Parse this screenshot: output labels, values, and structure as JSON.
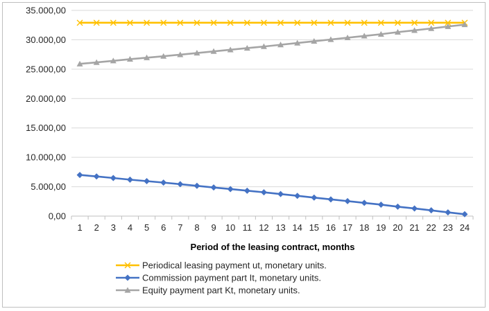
{
  "chart_data": {
    "type": "line",
    "title": "",
    "xlabel": "Period of the leasing contract, months",
    "ylabel": "",
    "x": [
      1,
      2,
      3,
      4,
      5,
      6,
      7,
      8,
      9,
      10,
      11,
      12,
      13,
      14,
      15,
      16,
      17,
      18,
      19,
      20,
      21,
      22,
      23,
      24
    ],
    "ylim": [
      0,
      35000
    ],
    "yticks": [
      0,
      5000,
      10000,
      15000,
      20000,
      25000,
      30000,
      35000
    ],
    "ytick_labels": [
      "0,00",
      "5.000,00",
      "10.000,00",
      "15.000,00",
      "20.000,00",
      "25.000,00",
      "30.000,00",
      "35.000,00"
    ],
    "grid": true,
    "legend_position": "bottom",
    "series": [
      {
        "name": "Periodical leasing payment ut, monetary units.",
        "color": "#ffc000",
        "marker": "x",
        "values": [
          32900,
          32900,
          32900,
          32900,
          32900,
          32900,
          32900,
          32900,
          32900,
          32900,
          32900,
          32900,
          32900,
          32900,
          32900,
          32900,
          32900,
          32900,
          32900,
          32900,
          32900,
          32900,
          32900,
          32900
        ]
      },
      {
        "name": "Commission payment part It, monetary units.",
        "color": "#4472c4",
        "marker": "diamond",
        "values": [
          7000,
          6750,
          6480,
          6200,
          5950,
          5700,
          5430,
          5150,
          4870,
          4600,
          4320,
          4050,
          3750,
          3450,
          3150,
          2850,
          2550,
          2250,
          1950,
          1600,
          1300,
          980,
          640,
          320
        ]
      },
      {
        "name": "Equity payment part Kt, monetary units.",
        "color": "#a5a5a5",
        "marker": "triangle",
        "values": [
          25900,
          26150,
          26420,
          26700,
          26950,
          27200,
          27470,
          27750,
          28030,
          28300,
          28580,
          28850,
          29150,
          29450,
          29750,
          30050,
          30350,
          30650,
          30950,
          31300,
          31600,
          31920,
          32260,
          32580
        ]
      }
    ]
  }
}
